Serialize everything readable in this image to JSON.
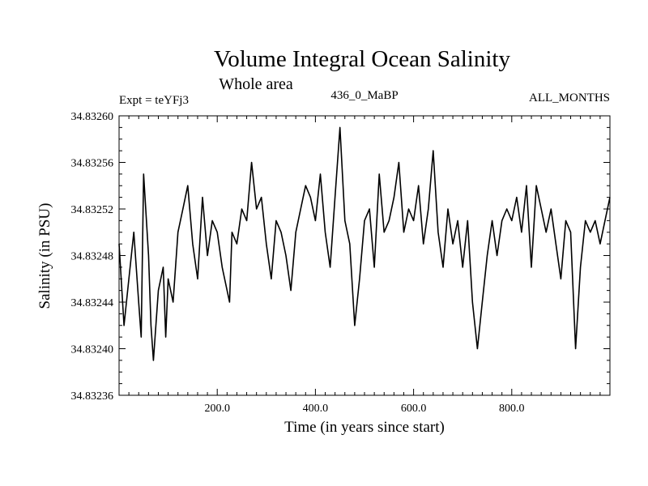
{
  "chart_data": {
    "type": "line",
    "title": "Volume Integral Ocean Salinity",
    "subtitle": "Whole area",
    "annotations": {
      "left": "Expt = teYFj3",
      "center": "436_0_MaBP",
      "right": "ALL_MONTHS"
    },
    "xlabel": "Time (in years since start)",
    "ylabel": "Salinity (in PSU)",
    "xlim": [
      0,
      1000
    ],
    "ylim": [
      34.83236,
      34.8326
    ],
    "x_ticks": [
      200,
      400,
      600,
      800
    ],
    "x_tick_labels": [
      "200.0",
      "400.0",
      "600.0",
      "800.0"
    ],
    "y_ticks": [
      34.83236,
      34.8324,
      34.83244,
      34.83248,
      34.83252,
      34.83256,
      34.8326
    ],
    "y_tick_labels": [
      "34.83236",
      "34.83240",
      "34.83244",
      "34.83248",
      "34.83252",
      "34.83256",
      "34.83260"
    ],
    "grid": false,
    "series": [
      {
        "name": "salinity",
        "x": [
          0,
          10,
          20,
          30,
          40,
          45,
          50,
          60,
          65,
          70,
          80,
          90,
          95,
          100,
          110,
          120,
          130,
          140,
          150,
          160,
          170,
          180,
          190,
          200,
          210,
          225,
          230,
          240,
          250,
          260,
          270,
          280,
          290,
          300,
          310,
          320,
          330,
          340,
          350,
          360,
          370,
          380,
          390,
          400,
          410,
          420,
          430,
          440,
          450,
          460,
          470,
          480,
          490,
          500,
          510,
          520,
          530,
          540,
          550,
          560,
          570,
          580,
          590,
          600,
          610,
          620,
          630,
          640,
          650,
          660,
          670,
          680,
          690,
          700,
          710,
          720,
          730,
          740,
          750,
          760,
          770,
          780,
          790,
          800,
          810,
          820,
          830,
          840,
          850,
          860,
          870,
          880,
          890,
          900,
          910,
          920,
          930,
          940,
          950,
          960,
          970,
          980,
          990,
          1000
        ],
        "values": [
          34.83249,
          34.83242,
          34.83246,
          34.8325,
          34.83244,
          34.83241,
          34.83255,
          34.83248,
          34.83242,
          34.83239,
          34.83245,
          34.83247,
          34.83241,
          34.83246,
          34.83244,
          34.8325,
          34.83252,
          34.83254,
          34.83249,
          34.83246,
          34.83253,
          34.83248,
          34.83251,
          34.8325,
          34.83247,
          34.83244,
          34.8325,
          34.83249,
          34.83252,
          34.83251,
          34.83256,
          34.83252,
          34.83253,
          34.83249,
          34.83246,
          34.83251,
          34.8325,
          34.83248,
          34.83245,
          34.8325,
          34.83252,
          34.83254,
          34.83253,
          34.83251,
          34.83255,
          34.8325,
          34.83247,
          34.83253,
          34.83259,
          34.83251,
          34.83249,
          34.83242,
          34.83246,
          34.83251,
          34.83252,
          34.83247,
          34.83255,
          34.8325,
          34.83251,
          34.83253,
          34.83256,
          34.8325,
          34.83252,
          34.83251,
          34.83254,
          34.83249,
          34.83252,
          34.83257,
          34.8325,
          34.83247,
          34.83252,
          34.83249,
          34.83251,
          34.83247,
          34.83251,
          34.83244,
          34.8324,
          34.83244,
          34.83248,
          34.83251,
          34.83248,
          34.83251,
          34.83252,
          34.83251,
          34.83253,
          34.8325,
          34.83254,
          34.83247,
          34.83254,
          34.83252,
          34.8325,
          34.83252,
          34.83249,
          34.83246,
          34.83251,
          34.8325,
          34.8324,
          34.83247,
          34.83251,
          34.8325,
          34.83251,
          34.83249,
          34.83251,
          34.83253
        ]
      }
    ]
  }
}
